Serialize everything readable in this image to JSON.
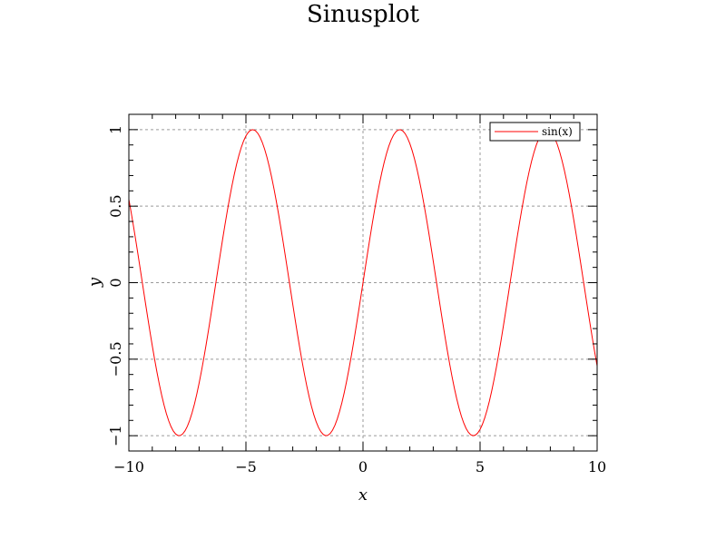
{
  "chart_data": {
    "type": "line",
    "title": "Sinusplot",
    "xlabel": "x",
    "ylabel": "y",
    "xlim": [
      -10,
      10
    ],
    "ylim": [
      -1.1,
      1.1
    ],
    "grid": true,
    "legend_position": "top-right",
    "x_ticks": [
      -10,
      -5,
      0,
      5,
      10
    ],
    "x_tick_labels": [
      "−10",
      "−5",
      "0",
      "5",
      "10"
    ],
    "y_ticks": [
      -1,
      -0.5,
      0,
      0.5,
      1
    ],
    "y_tick_labels": [
      "−1",
      "−0.5",
      "0",
      "0.5",
      "1"
    ],
    "series": [
      {
        "name": "sin(x)",
        "color": "#ff0000",
        "function": "sin",
        "x_start": -10,
        "x_end": 10,
        "x_step": 0.1
      }
    ]
  }
}
